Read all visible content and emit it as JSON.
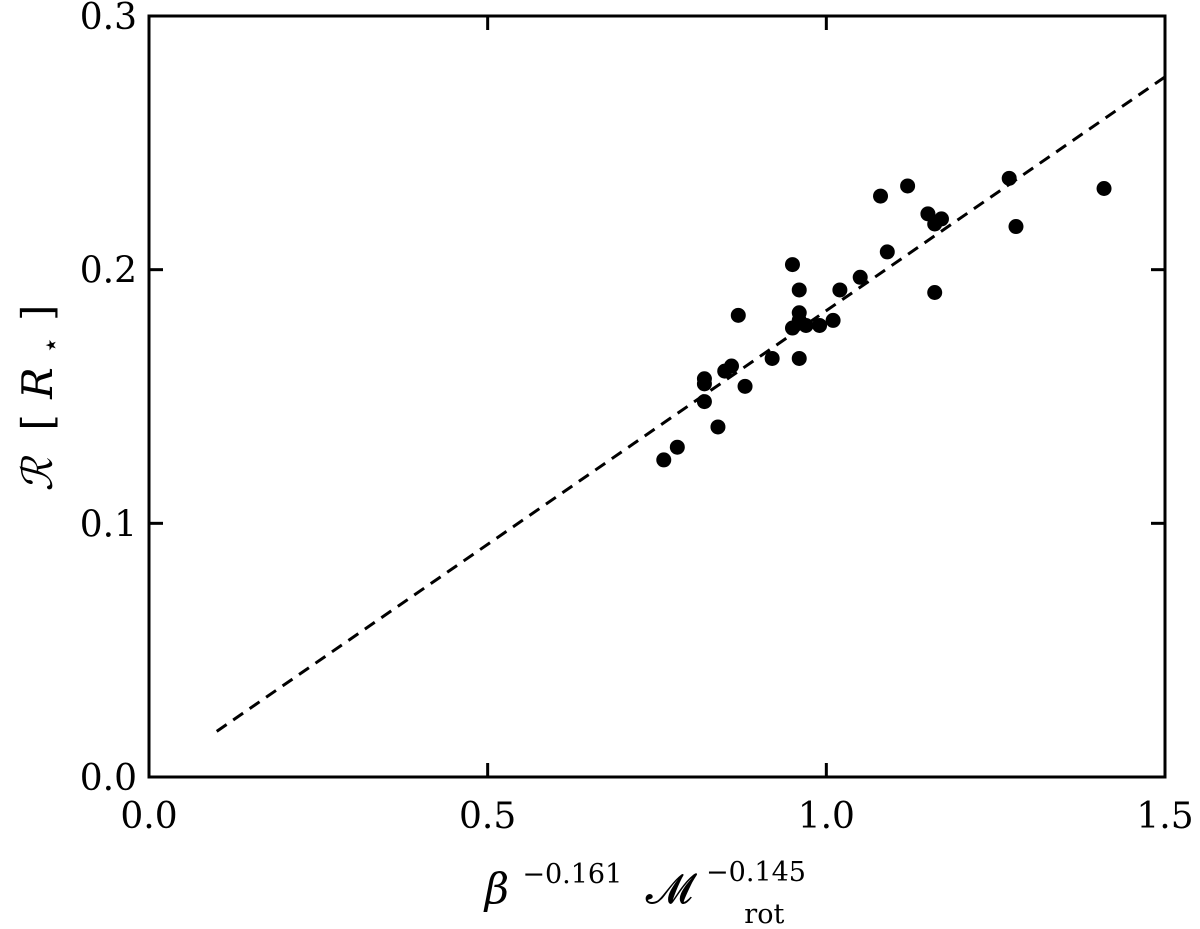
{
  "chart_data": {
    "type": "scatter",
    "xlim": [
      0.0,
      1.5
    ],
    "ylim": [
      0.0,
      0.3
    ],
    "x_ticks": [
      0.0,
      0.5,
      1.0,
      1.5
    ],
    "x_tick_labels": [
      "0.0",
      "0.5",
      "1.0",
      "1.5"
    ],
    "y_ticks": [
      0.0,
      0.1,
      0.2,
      0.3
    ],
    "y_tick_labels": [
      "0.0",
      "0.1",
      "0.2",
      "0.3"
    ],
    "xlabel": {
      "base1": "β",
      "exp1": "−0.161",
      "base2": "𝓜",
      "sub2": "rot",
      "exp2": "−0.145"
    },
    "ylabel": {
      "symbol": "ℛ",
      "unit_open": "[",
      "unit_base": "R",
      "unit_sub": "⋆",
      "unit_close": "]"
    },
    "grid": false,
    "points": [
      {
        "x": 0.76,
        "y": 0.125
      },
      {
        "x": 0.78,
        "y": 0.13
      },
      {
        "x": 0.82,
        "y": 0.148
      },
      {
        "x": 0.82,
        "y": 0.155
      },
      {
        "x": 0.82,
        "y": 0.157
      },
      {
        "x": 0.84,
        "y": 0.138
      },
      {
        "x": 0.85,
        "y": 0.16
      },
      {
        "x": 0.86,
        "y": 0.162
      },
      {
        "x": 0.87,
        "y": 0.182
      },
      {
        "x": 0.88,
        "y": 0.154
      },
      {
        "x": 0.92,
        "y": 0.165
      },
      {
        "x": 0.95,
        "y": 0.177
      },
      {
        "x": 0.95,
        "y": 0.202
      },
      {
        "x": 0.96,
        "y": 0.165
      },
      {
        "x": 0.96,
        "y": 0.18
      },
      {
        "x": 0.96,
        "y": 0.183
      },
      {
        "x": 0.96,
        "y": 0.192
      },
      {
        "x": 0.97,
        "y": 0.178
      },
      {
        "x": 0.99,
        "y": 0.178
      },
      {
        "x": 1.01,
        "y": 0.18
      },
      {
        "x": 1.02,
        "y": 0.192
      },
      {
        "x": 1.05,
        "y": 0.197
      },
      {
        "x": 1.08,
        "y": 0.229
      },
      {
        "x": 1.09,
        "y": 0.207
      },
      {
        "x": 1.12,
        "y": 0.233
      },
      {
        "x": 1.15,
        "y": 0.222
      },
      {
        "x": 1.16,
        "y": 0.191
      },
      {
        "x": 1.16,
        "y": 0.218
      },
      {
        "x": 1.17,
        "y": 0.22
      },
      {
        "x": 1.27,
        "y": 0.236
      },
      {
        "x": 1.28,
        "y": 0.217
      },
      {
        "x": 1.41,
        "y": 0.232
      }
    ],
    "fit_line": {
      "style": "dashed",
      "x": [
        0.1,
        1.5
      ],
      "y": [
        0.018,
        0.276
      ]
    },
    "colors": {
      "points": "#000000",
      "line": "#000000",
      "axes": "#000000"
    }
  }
}
